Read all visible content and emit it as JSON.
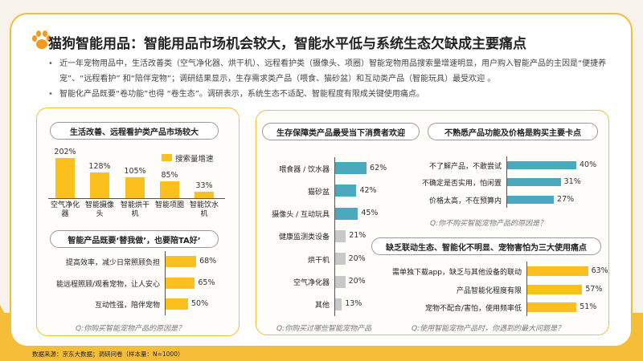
{
  "title": "猫狗智能用品：智能用品市场机会较大，智能水平低与系统生态欠缺成主要痛点",
  "bullets": [
    "近一年宠物用品中，生活改善类（空气净化器、烘干机）、远程看护类（摄像头、项圈）智能宠物用品搜索量增速明显，用户购入智能产品的主因是“便捷养宠”、“远程看护” 和“陪伴宠物”；调研结果显示，生存需求类产品（喂食、猫砂盆）和互动类产品（智能玩具）最受欢迎 。",
    "智能化产品既要“卷功能”也得 “卷生态”。调研表示，系统生态不适配、智能程度有限成关键使用痛点。"
  ],
  "source": "数据来源：京东大数据；调研问卷（样本量：N=1000）",
  "colors": {
    "yellow": "#fbbf1e",
    "teal": "#4aa9bd",
    "gray": "#c8c8c8",
    "frame": "#f6bd39"
  },
  "chart_data": [
    {
      "type": "bar",
      "title": "生活改善、远程看护类产品市场较大",
      "legend": "搜索量增速",
      "categories": [
        "空气净化器",
        "智能摄像头",
        "智能烘干机",
        "智能项圈",
        "智能饮水机"
      ],
      "labels": [
        "202%",
        "128%",
        "105%",
        "85%",
        "33%"
      ],
      "values": [
        202,
        128,
        105,
        85,
        33
      ],
      "unit": "%"
    },
    {
      "type": "bar",
      "orientation": "horizontal",
      "title": "智能产品既要‘替我做’，也要陪TA好’",
      "question": "Q:你购买智能宠物产品的原因是？",
      "categories": [
        "提高效率，减少日常照顾负担",
        "能远程照顾/观看宠物，让人安心",
        "互动性强，陪伴宠物"
      ],
      "labels": [
        "68%",
        "65%",
        "50%"
      ],
      "values": [
        68,
        65,
        50
      ]
    },
    {
      "type": "bar",
      "orientation": "horizontal",
      "title": "生存保障类产品最受当下消费者欢迎",
      "question": "Q:你购买过哪些智能宠物产品",
      "categories": [
        "喂食器 / 饮水器",
        "猫砂盆",
        "摄像头 / 互动玩具",
        "健康监测类设备",
        "烘干机",
        "空气净化器",
        "其他"
      ],
      "labels": [
        "62%",
        "42%",
        "45%",
        "21%",
        "20%",
        "20%",
        "13%"
      ],
      "values": [
        62,
        42,
        45,
        21,
        20,
        20,
        13
      ]
    },
    {
      "type": "bar",
      "orientation": "horizontal",
      "title": "不熟悉产品功能及价格是购买主要卡点",
      "question": "Q:你不购买智能宠物产品的原因是？",
      "categories": [
        "不了解产品，不敢尝试",
        "不确定是否实用，怕闲置",
        "价格太高，不在预算内"
      ],
      "labels": [
        "40%",
        "31%",
        "27%"
      ],
      "values": [
        40,
        31,
        27
      ]
    },
    {
      "type": "bar",
      "orientation": "horizontal",
      "title": "缺乏联动生态、智能化不明显、宠物害怕为三大使用痛点",
      "question": "Q:使用智能宠物产品时，你遇到的最大问题是？",
      "categories": [
        "需单独下载app，缺乏与其他设备的联动",
        "产品智能化程度有限",
        "宠物不配合/害怕，使用频率低"
      ],
      "labels": [
        "63%",
        "57%",
        "51%"
      ],
      "values": [
        63,
        57,
        51
      ]
    }
  ]
}
